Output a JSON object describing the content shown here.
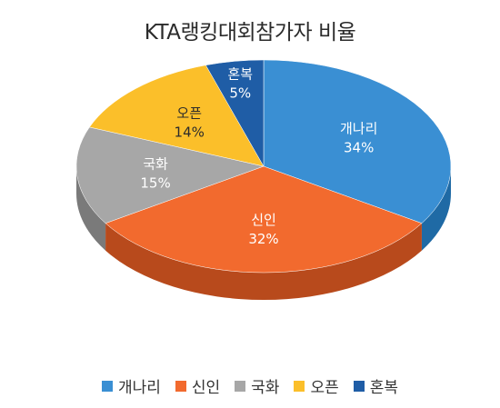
{
  "chart_data": {
    "type": "pie",
    "title": "KTA랭킹대회참가자 비율",
    "slices": [
      {
        "label": "개나리",
        "value": 34,
        "color": "#3a8fd3",
        "side": "#1f6aa5"
      },
      {
        "label": "신인",
        "value": 32,
        "color": "#f26a2e",
        "side": "#b84a1c"
      },
      {
        "label": "국화",
        "value": 15,
        "color": "#a7a7a7",
        "side": "#7a7a7a"
      },
      {
        "label": "오픈",
        "value": 14,
        "color": "#fbbf2a",
        "side": "#c8931a"
      },
      {
        "label": "혼복",
        "value": 5,
        "color": "#1f5da6",
        "side": "#143f73"
      }
    ],
    "value_suffix": "%",
    "legend_position": "bottom"
  }
}
